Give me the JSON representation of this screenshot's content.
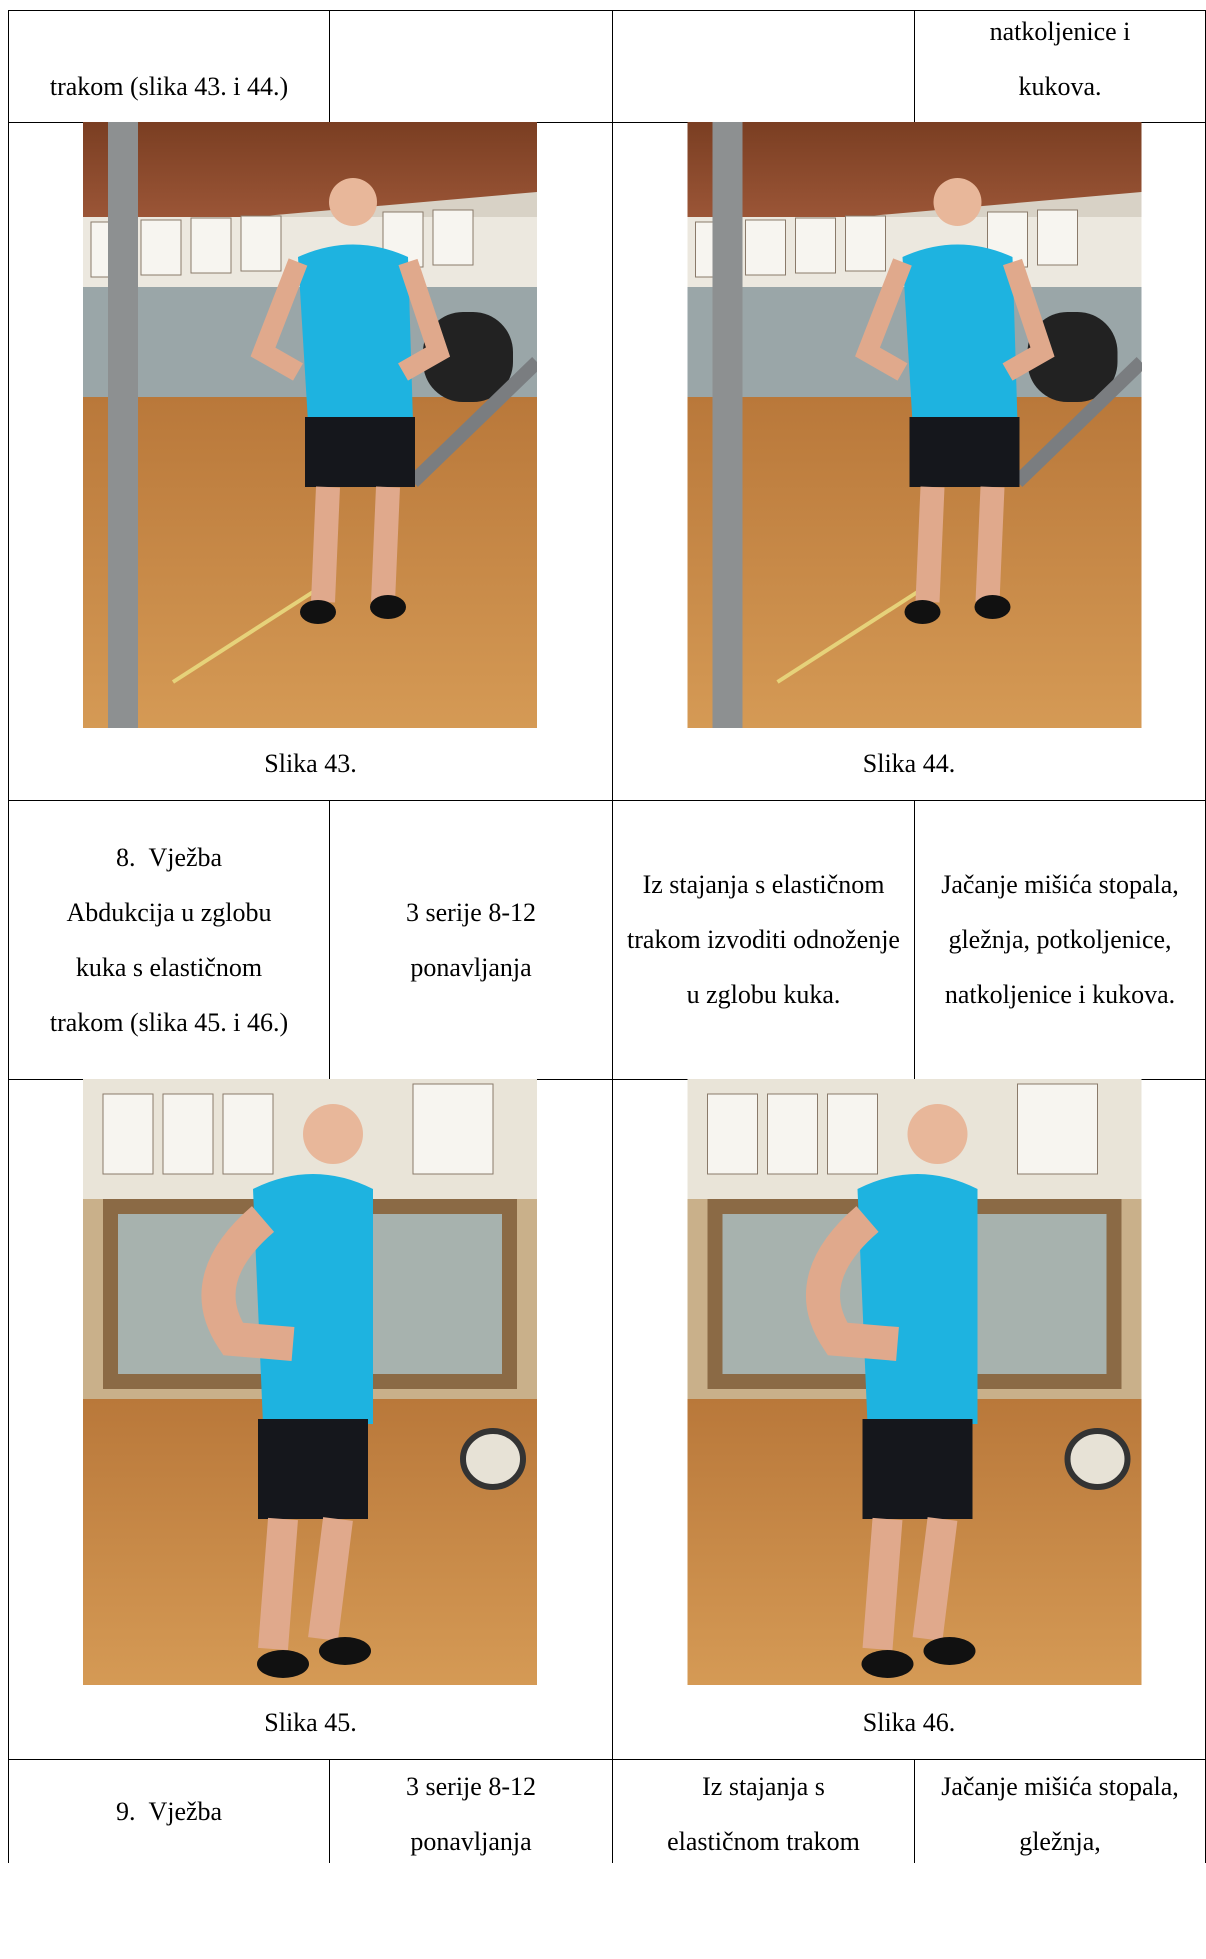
{
  "table": {
    "rows": [
      {
        "exercise": "trakom (slika 43. i 44.)",
        "purpose": "natkoljenice i kukova."
      },
      {
        "captions": [
          "Slika 43.",
          "Slika 44."
        ]
      },
      {
        "number": "8.",
        "exercise_name": "Vježba",
        "exercise": "Abdukcija u zglobu kuka s elastičnom trakom (slika 45. i 46.)",
        "dosage": "3 serije 8-12 ponavljanja",
        "description": "Iz stajanja s elastičnom trakom izvoditi odnoženje u zglobu kuka.",
        "purpose": "Jačanje mišića stopala, gležnja, potkoljenice, natkoljenice i kukova."
      },
      {
        "captions": [
          "Slika 45.",
          "Slika 46."
        ]
      },
      {
        "number": "9.",
        "exercise_name": "Vježba",
        "dosage": "3 serije 8-12 ponavljanja",
        "description": "Iz stajanja s elastičnom trakom",
        "purpose": "Jačanje mišića stopala, gležnja,"
      }
    ]
  }
}
